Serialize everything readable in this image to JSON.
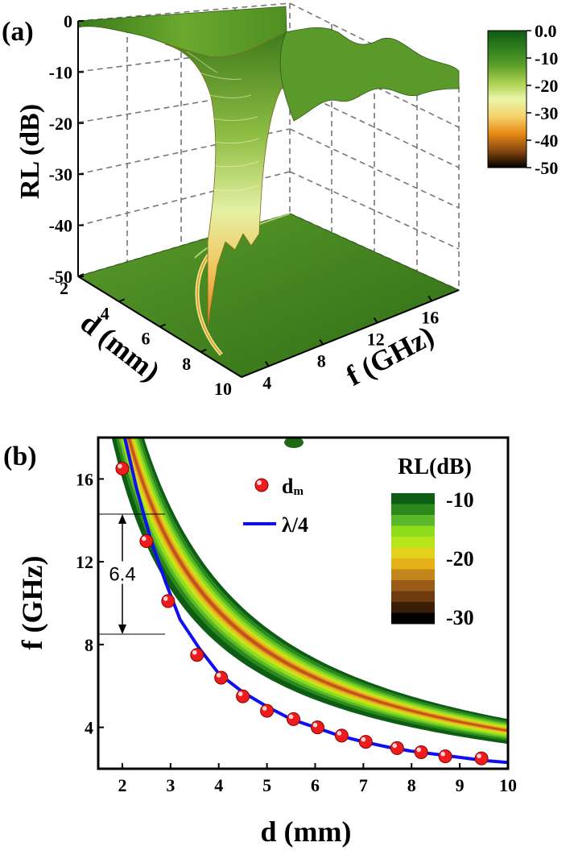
{
  "chart_data": [
    {
      "panel_label": "(a)",
      "type": "surface",
      "zlabel": "RL (dB)",
      "xlabel": "d (mm)",
      "ylabel": "f (GHz)",
      "z_ticks": [
        "0",
        "-10",
        "-20",
        "-30",
        "-40",
        "-50"
      ],
      "x_ticks": [
        "2",
        "4",
        "6",
        "8",
        "10"
      ],
      "y_ticks": [
        "4",
        "8",
        "12",
        "16"
      ],
      "zlim": [
        -50,
        0
      ],
      "xlim": [
        2,
        10
      ],
      "ylim": [
        2,
        18
      ],
      "colorbar": {
        "ticks": [
          "0.0",
          "-10",
          "-20",
          "-30",
          "-40",
          "-50"
        ],
        "range": [
          -50,
          0
        ],
        "colors": [
          "#0f5a14",
          "#2e7d1e",
          "#5a9e2a",
          "#a6cf4c",
          "#eaf5a8",
          "#f4d36a",
          "#e88a16",
          "#8a4a10",
          "#000000"
        ]
      }
    },
    {
      "panel_label": "(b)",
      "type": "contour",
      "xlabel": "d (mm)",
      "ylabel": "f (GHz)",
      "x_ticks": [
        "2",
        "3",
        "4",
        "5",
        "6",
        "7",
        "8",
        "9",
        "10"
      ],
      "y_ticks": [
        "4",
        "8",
        "12",
        "16"
      ],
      "xlim": [
        1.5,
        10
      ],
      "ylim": [
        2,
        18
      ],
      "legend": {
        "dm": "d",
        "dm_sub": "m",
        "lambda4": "λ/4"
      },
      "annotation": {
        "text": "6.4",
        "f_low": 8.5,
        "f_high": 14.3
      },
      "colorbar": {
        "title": "RL(dB)",
        "ticks": [
          "-10",
          "-20",
          "-30"
        ],
        "colors": [
          "#0e5d14",
          "#2c8a1d",
          "#5bb82a",
          "#8fdc1c",
          "#b7e51c",
          "#e3d21c",
          "#e6b018",
          "#c2861c",
          "#9a5a18",
          "#6e3a10",
          "#3a1e08",
          "#000000"
        ]
      },
      "series": [
        {
          "name": "dm",
          "x": [
            2.0,
            2.5,
            2.95,
            3.55,
            4.05,
            4.5,
            5.0,
            5.55,
            6.05,
            6.55,
            7.05,
            7.7,
            8.2,
            8.7,
            9.45
          ],
          "y": [
            16.5,
            13.0,
            10.1,
            7.5,
            6.4,
            5.5,
            4.8,
            4.4,
            4.0,
            3.6,
            3.3,
            3.0,
            2.8,
            2.6,
            2.5
          ]
        },
        {
          "name": "λ/4",
          "x": [
            2.05,
            2.3,
            2.6,
            2.9,
            3.2,
            3.6,
            4.0,
            4.5,
            5.0,
            5.5,
            6.0,
            6.5,
            7.0,
            7.5,
            8.0,
            8.5,
            9.0,
            9.5,
            10.0
          ],
          "y": [
            18.0,
            15.5,
            13.0,
            11.0,
            9.2,
            7.8,
            6.6,
            5.7,
            5.0,
            4.4,
            4.0,
            3.6,
            3.3,
            3.05,
            2.85,
            2.7,
            2.55,
            2.4,
            2.3
          ]
        }
      ]
    }
  ]
}
